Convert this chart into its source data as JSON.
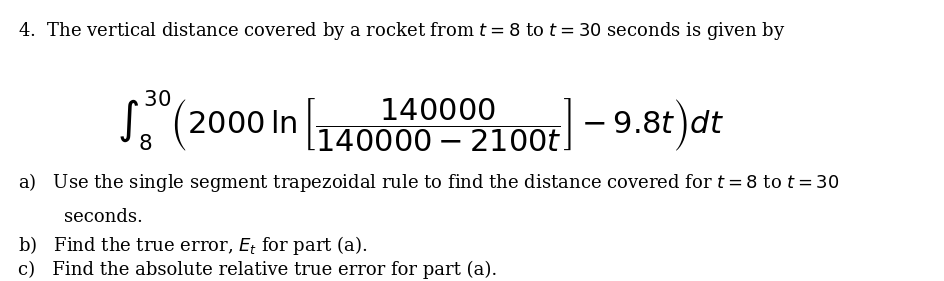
{
  "title_number": "4.",
  "title_text": "  The vertical distance covered by a rocket from $t = 8$ to $t = 30$ seconds is given by",
  "integral_display": true,
  "item_a": "a) Use the single segment trapezoidal rule to find the distance covered for $t = 8$ to $t = 30$\n   seconds.",
  "item_b": "b) Find the true error, $E_t$ for part (a).",
  "item_c": "c) Find the absolute relative true error for part (a).",
  "bg_color": "#ffffff",
  "text_color": "#000000",
  "fontsize_main": 13,
  "fontsize_formula": 15
}
